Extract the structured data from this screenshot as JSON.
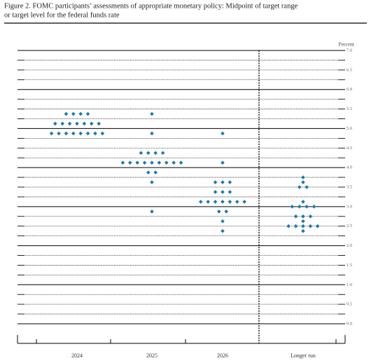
{
  "chart_data": {
    "type": "dot",
    "title": [
      "Figure 2.  FOMC participants’ assessments of appropriate monetary policy:  Midpoint of target range",
      "or target level for the federal funds rate"
    ],
    "y_label": "Percent",
    "color": "#1a7aa8",
    "ylim": [
      0,
      7
    ],
    "yticks": [
      {
        "value": 0,
        "label": "0.0"
      },
      {
        "value": 0.5,
        "label": "0.5"
      },
      {
        "value": 1,
        "label": "1.0"
      },
      {
        "value": 1.5,
        "label": "1.5"
      },
      {
        "value": 2,
        "label": "2.0"
      },
      {
        "value": 2.5,
        "label": "2.5"
      },
      {
        "value": 3,
        "label": "3.0"
      },
      {
        "value": 3.5,
        "label": "3.5"
      },
      {
        "value": 4,
        "label": "4.0"
      },
      {
        "value": 4.5,
        "label": "4.5"
      },
      {
        "value": 5,
        "label": "5.0"
      },
      {
        "value": 5.5,
        "label": "5.5"
      },
      {
        "value": 6,
        "label": "6.0"
      },
      {
        "value": 6.5,
        "label": "6.5"
      },
      {
        "value": 7,
        "label": "7.0"
      }
    ],
    "categories": [
      "2024",
      "2025",
      "2026",
      "Longer run"
    ],
    "dots": [
      {
        "levels": [
          5.375,
          5.125,
          4.875
        ],
        "counts": [
          4,
          7,
          8
        ]
      },
      {
        "levels": [
          5.375,
          4.875,
          4.375,
          4.125,
          3.875,
          3.625,
          2.875
        ],
        "counts": [
          1,
          1,
          4,
          9,
          2,
          1,
          1
        ]
      },
      {
        "levels": [
          4.875,
          4.125,
          3.625,
          3.375,
          3.125,
          2.875,
          2.625,
          2.375
        ],
        "counts": [
          1,
          1,
          3,
          3,
          7,
          2,
          1,
          1
        ]
      },
      {
        "levels": [
          3.75,
          3.625,
          3.5,
          3.125,
          3.0,
          2.75,
          2.625,
          2.5,
          2.375
        ],
        "counts": [
          1,
          1,
          2,
          1,
          4,
          3,
          1,
          5,
          1
        ]
      }
    ]
  }
}
